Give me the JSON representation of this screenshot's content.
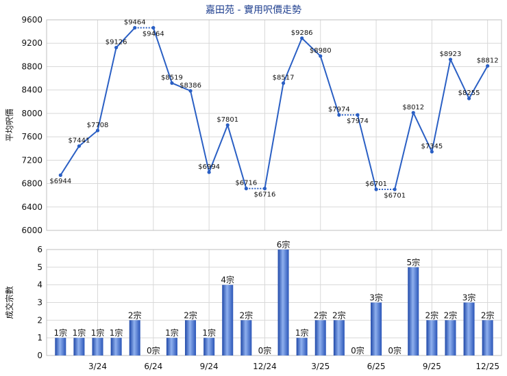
{
  "title": "嘉田苑 - 實用呎價走勢",
  "chart_data": [
    {
      "type": "line",
      "ylabel": "平均呎價",
      "ylim": [
        6000,
        9600
      ],
      "yticks": [
        6000,
        6400,
        6800,
        7200,
        7600,
        8000,
        8400,
        8800,
        9200,
        9600
      ],
      "line_color": "#2a5fc4",
      "points": [
        {
          "i": 0,
          "value": 6944,
          "label": "$6944",
          "pos": "below"
        },
        {
          "i": 1,
          "value": 7441,
          "label": "$7441",
          "pos": "above"
        },
        {
          "i": 2,
          "value": 7708,
          "label": "$7708",
          "pos": "above"
        },
        {
          "i": 3,
          "value": 9126,
          "label": "$9126",
          "pos": "above"
        },
        {
          "i": 4,
          "value": 9464,
          "label": "$9464",
          "pos": "above"
        },
        {
          "i": 5,
          "value": 9464,
          "label": "$9464",
          "pos": "below"
        },
        {
          "i": 6,
          "value": 8519,
          "label": "$8519",
          "pos": "above"
        },
        {
          "i": 7,
          "value": 8386,
          "label": "$8386",
          "pos": "above"
        },
        {
          "i": 8,
          "value": 6994,
          "label": "$6994",
          "pos": "above"
        },
        {
          "i": 9,
          "value": 7801,
          "label": "$7801",
          "pos": "above"
        },
        {
          "i": 10,
          "value": 6716,
          "label": "$6716",
          "pos": "above"
        },
        {
          "i": 11,
          "value": 6716,
          "label": "$6716",
          "pos": "below"
        },
        {
          "i": 12,
          "value": 8517,
          "label": "$8517",
          "pos": "above"
        },
        {
          "i": 13,
          "value": 9286,
          "label": "$9286",
          "pos": "above"
        },
        {
          "i": 14,
          "value": 8980,
          "label": "$8980",
          "pos": "above"
        },
        {
          "i": 15,
          "value": 7974,
          "label": "$7974",
          "pos": "above"
        },
        {
          "i": 16,
          "value": 7974,
          "label": "$7974",
          "pos": "below"
        },
        {
          "i": 17,
          "value": 6701,
          "label": "$6701",
          "pos": "above"
        },
        {
          "i": 18,
          "value": 6701,
          "label": "$6701",
          "pos": "below"
        },
        {
          "i": 19,
          "value": 8012,
          "label": "$8012",
          "pos": "above"
        },
        {
          "i": 20,
          "value": 7345,
          "label": "$7345",
          "pos": "above"
        },
        {
          "i": 21,
          "value": 8923,
          "label": "$8923",
          "pos": "above"
        },
        {
          "i": 22,
          "value": 8255,
          "label": "$8255",
          "pos": "above"
        },
        {
          "i": 23,
          "value": 8812,
          "label": "$8812",
          "pos": "above"
        }
      ],
      "dotted_segments": [
        [
          4,
          5
        ],
        [
          10,
          11
        ],
        [
          15,
          16
        ],
        [
          17,
          18
        ]
      ]
    },
    {
      "type": "bar",
      "ylabel": "成交宗數",
      "ylim": [
        0,
        6
      ],
      "yticks": [
        0,
        1,
        2,
        3,
        4,
        5,
        6
      ],
      "bar_color": "#2f5fc0",
      "categories": [
        "3/24",
        "6/24",
        "9/24",
        "12/24",
        "3/25",
        "6/25",
        "9/25",
        "12/25"
      ],
      "values": [
        1,
        1,
        1,
        1,
        2,
        0,
        1,
        2,
        1,
        4,
        2,
        0,
        6,
        1,
        2,
        2,
        0,
        3,
        0,
        5,
        2,
        2,
        3,
        2
      ],
      "labels": [
        "1宗",
        "1宗",
        "1宗",
        "1宗",
        "2宗",
        "0宗",
        "1宗",
        "2宗",
        "1宗",
        "4宗",
        "2宗",
        "0宗",
        "6宗",
        "1宗",
        "2宗",
        "2宗",
        "0宗",
        "3宗",
        "0宗",
        "5宗",
        "2宗",
        "2宗",
        "3宗",
        "2宗"
      ]
    }
  ]
}
